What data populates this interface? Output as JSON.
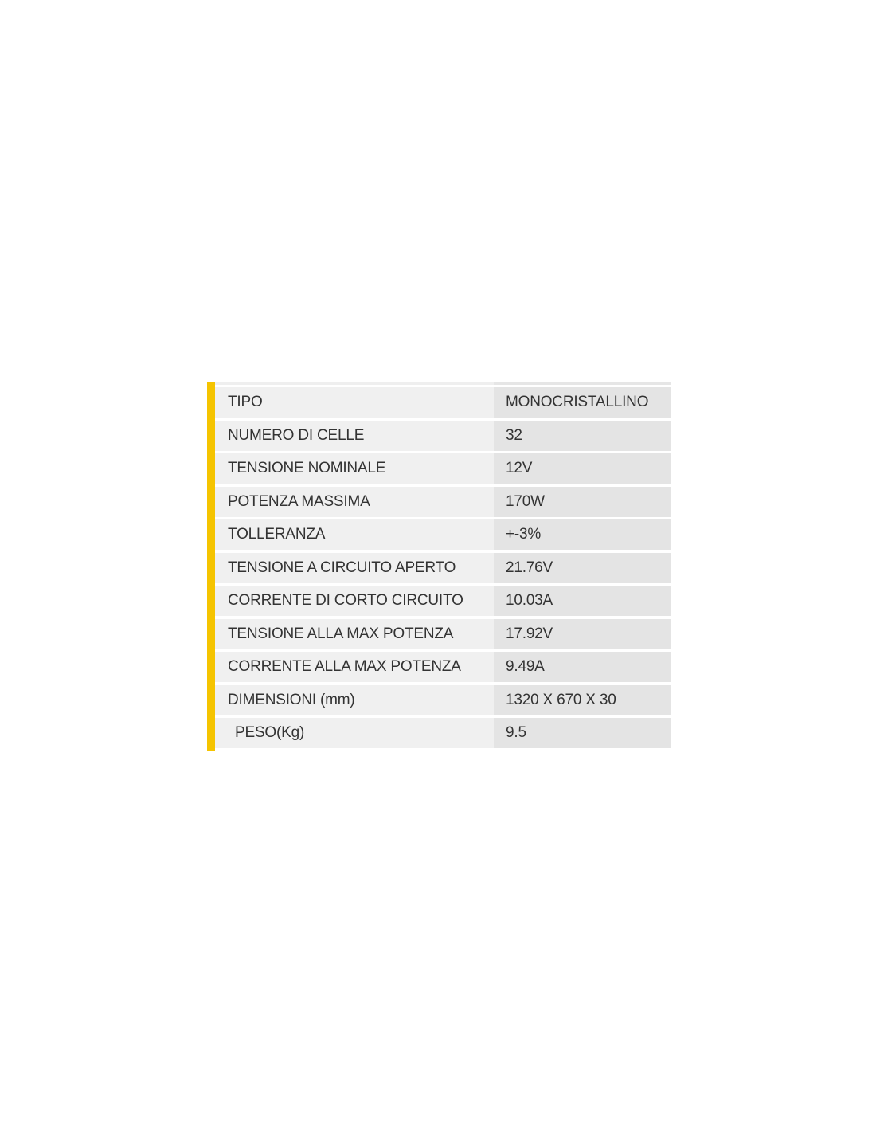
{
  "accent_color": "#f5c400",
  "specs": [
    {
      "label": "TIPO",
      "value": "MONOCRISTALLINO"
    },
    {
      "label": "NUMERO DI CELLE",
      "value": "32"
    },
    {
      "label": "TENSIONE NOMINALE",
      "value": "12V"
    },
    {
      "label": "POTENZA MASSIMA",
      "value": "170W"
    },
    {
      "label": "TOLLERANZA",
      "value": "+-3%"
    },
    {
      "label": "TENSIONE A CIRCUITO APERTO",
      "value": "21.76V"
    },
    {
      "label": "CORRENTE DI CORTO CIRCUITO",
      "value": "10.03A"
    },
    {
      "label": "TENSIONE ALLA MAX POTENZA",
      "value": "17.92V"
    },
    {
      "label": "CORRENTE ALLA MAX POTENZA",
      "value": "9.49A"
    },
    {
      "label": "DIMENSIONI (mm)",
      "value": "1320 X 670 X 30"
    },
    {
      "label": "PESO(Kg)",
      "value": "9.5"
    }
  ]
}
